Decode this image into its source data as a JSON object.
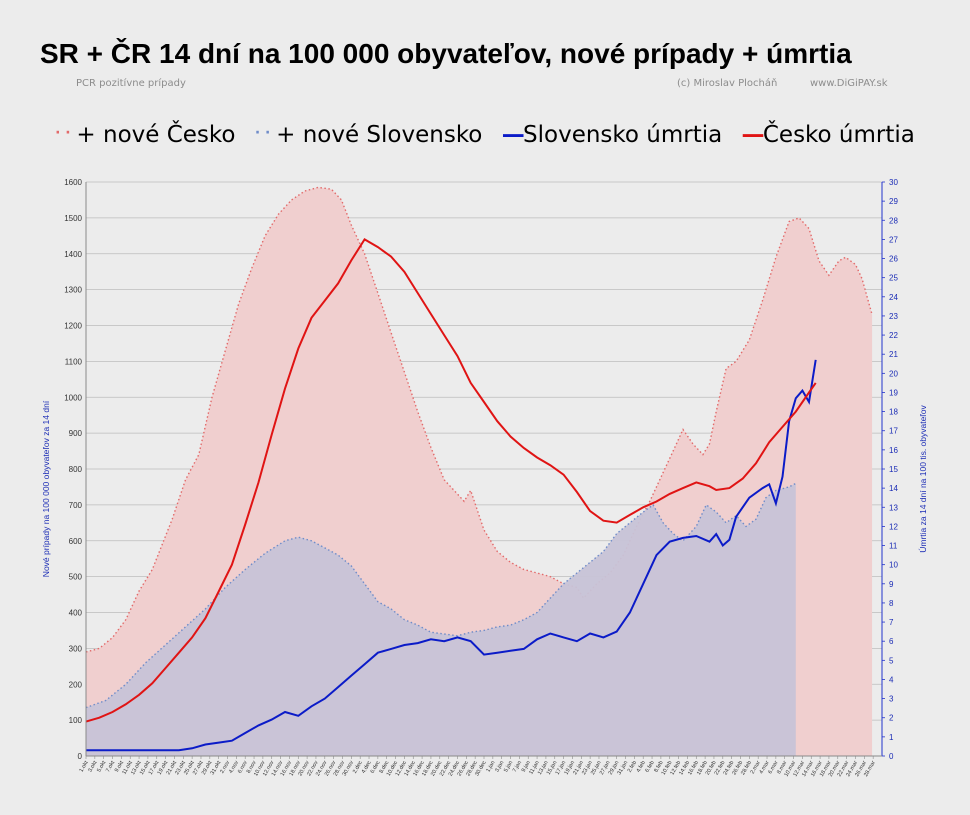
{
  "title": "SR + ČR 14 dní na 100 000 obyvateľov,  nové prípady + úmrtia",
  "subtitle_left": "PCR pozitívne prípady",
  "credit": "(c) Miroslav Plocháň",
  "website": "www.DiGiPAY.sk",
  "colors": {
    "cz_cases_fill": "#f0cfcf",
    "cz_cases_line": "#e26a6a",
    "sk_cases_fill": "#c7c3d7",
    "sk_cases_line": "#6f8cc9",
    "sk_deaths": "#0b1bc8",
    "cz_deaths": "#e01414"
  },
  "chart_data": {
    "type": "line",
    "legend_position": "top",
    "grid": true,
    "ylabel_left": "Nové prípady na 100 000 obyvateľov za 14 dní",
    "ylabel_right": "Úmrtia za 14 dní na 100 tis. obyvateľov",
    "ylim_left": [
      0,
      1600
    ],
    "ylim_right": [
      0,
      30
    ],
    "yticks_left": [
      0,
      100,
      200,
      300,
      400,
      500,
      600,
      700,
      800,
      900,
      1000,
      1100,
      1200,
      1300,
      1400,
      1500,
      1600
    ],
    "yticks_right": [
      0,
      1,
      2,
      3,
      4,
      5,
      6,
      7,
      8,
      9,
      10,
      11,
      12,
      13,
      14,
      15,
      16,
      17,
      18,
      19,
      20,
      21,
      22,
      23,
      24,
      25,
      26,
      27,
      28,
      29,
      30
    ],
    "x_days": 240,
    "x_ticks": [
      "1.okt",
      "3.okt",
      "5.okt",
      "7.okt",
      "9.okt",
      "11.okt",
      "13.okt",
      "15.okt",
      "17.okt",
      "19.okt",
      "21.okt",
      "23.okt",
      "25.okt",
      "27.okt",
      "29.okt",
      "31.okt",
      "2.nov",
      "4.nov",
      "6.nov",
      "8.nov",
      "10.nov",
      "12.nov",
      "14.nov",
      "16.nov",
      "18.nov",
      "20.nov",
      "22.nov",
      "24.nov",
      "26.nov",
      "28.nov",
      "30.nov",
      "2.dec",
      "4.dec",
      "6.dec",
      "8.dec",
      "10.dec",
      "12.dec",
      "14.dec",
      "16.dec",
      "18.dec",
      "20.dec",
      "22.dec",
      "24.dec",
      "26.dec",
      "28.dec",
      "30.dec",
      "1.jan",
      "3.jan",
      "5.jan",
      "7.jan",
      "9.jan",
      "11.jan",
      "13.jan",
      "15.jan",
      "17.jan",
      "19.jan",
      "21.jan",
      "23.jan",
      "25.jan",
      "27.jan",
      "29.jan",
      "31.jan",
      "2.feb",
      "4.feb",
      "6.feb",
      "8.feb",
      "10.feb",
      "12.feb",
      "14.feb",
      "16.feb",
      "18.feb",
      "20.feb",
      "22.feb",
      "24.feb",
      "26.feb",
      "28.feb",
      "2.mar",
      "4.mar",
      "6.mar",
      "8.mar",
      "10.mar",
      "12.mar",
      "14.mar",
      "16.mar",
      "18.mar",
      "20.mar",
      "22.mar",
      "24.mar",
      "26.mar",
      "28.mar"
    ],
    "series": [
      {
        "name": "+ nové Česko",
        "axis": "left",
        "style": "dotted-area",
        "points": [
          [
            0,
            290
          ],
          [
            4,
            300
          ],
          [
            8,
            330
          ],
          [
            12,
            380
          ],
          [
            16,
            460
          ],
          [
            20,
            520
          ],
          [
            26,
            660
          ],
          [
            30,
            770
          ],
          [
            34,
            840
          ],
          [
            38,
            1000
          ],
          [
            42,
            1130
          ],
          [
            46,
            1260
          ],
          [
            50,
            1360
          ],
          [
            54,
            1450
          ],
          [
            58,
            1510
          ],
          [
            62,
            1550
          ],
          [
            66,
            1575
          ],
          [
            70,
            1585
          ],
          [
            74,
            1580
          ],
          [
            77,
            1550
          ],
          [
            80,
            1480
          ],
          [
            84,
            1400
          ],
          [
            88,
            1290
          ],
          [
            92,
            1180
          ],
          [
            96,
            1070
          ],
          [
            100,
            960
          ],
          [
            104,
            860
          ],
          [
            108,
            770
          ],
          [
            112,
            730
          ],
          [
            114,
            710
          ],
          [
            116,
            740
          ],
          [
            120,
            630
          ],
          [
            124,
            570
          ],
          [
            128,
            540
          ],
          [
            132,
            520
          ],
          [
            136,
            510
          ],
          [
            140,
            500
          ],
          [
            144,
            480
          ],
          [
            148,
            470
          ],
          [
            150,
            440
          ],
          [
            154,
            480
          ],
          [
            158,
            510
          ],
          [
            162,
            560
          ],
          [
            166,
            640
          ],
          [
            170,
            710
          ],
          [
            174,
            790
          ],
          [
            177,
            850
          ],
          [
            180,
            910
          ],
          [
            183,
            870
          ],
          [
            186,
            840
          ],
          [
            188,
            870
          ],
          [
            190,
            960
          ],
          [
            193,
            1080
          ],
          [
            196,
            1100
          ],
          [
            200,
            1160
          ],
          [
            204,
            1270
          ],
          [
            208,
            1390
          ],
          [
            212,
            1490
          ],
          [
            215,
            1500
          ],
          [
            218,
            1470
          ],
          [
            221,
            1380
          ],
          [
            224,
            1340
          ],
          [
            227,
            1380
          ],
          [
            229,
            1390
          ],
          [
            232,
            1370
          ],
          [
            234,
            1330
          ],
          [
            237,
            1230
          ]
        ]
      },
      {
        "name": "+ nové Slovensko",
        "axis": "left",
        "style": "dotted-area",
        "points": [
          [
            0,
            135
          ],
          [
            6,
            155
          ],
          [
            12,
            200
          ],
          [
            18,
            260
          ],
          [
            24,
            310
          ],
          [
            30,
            360
          ],
          [
            36,
            410
          ],
          [
            42,
            470
          ],
          [
            48,
            520
          ],
          [
            54,
            565
          ],
          [
            60,
            600
          ],
          [
            64,
            610
          ],
          [
            68,
            600
          ],
          [
            72,
            580
          ],
          [
            76,
            560
          ],
          [
            80,
            530
          ],
          [
            84,
            480
          ],
          [
            88,
            430
          ],
          [
            92,
            410
          ],
          [
            96,
            380
          ],
          [
            100,
            365
          ],
          [
            104,
            345
          ],
          [
            108,
            340
          ],
          [
            112,
            335
          ],
          [
            116,
            345
          ],
          [
            120,
            350
          ],
          [
            124,
            360
          ],
          [
            128,
            365
          ],
          [
            132,
            380
          ],
          [
            136,
            400
          ],
          [
            140,
            440
          ],
          [
            144,
            480
          ],
          [
            148,
            510
          ],
          [
            152,
            540
          ],
          [
            156,
            570
          ],
          [
            160,
            620
          ],
          [
            164,
            650
          ],
          [
            168,
            680
          ],
          [
            171,
            700
          ],
          [
            174,
            650
          ],
          [
            177,
            620
          ],
          [
            180,
            600
          ],
          [
            184,
            640
          ],
          [
            187,
            700
          ],
          [
            190,
            680
          ],
          [
            193,
            650
          ],
          [
            196,
            670
          ],
          [
            199,
            640
          ],
          [
            202,
            660
          ],
          [
            205,
            720
          ],
          [
            208,
            740
          ],
          [
            212,
            750
          ],
          [
            214,
            760
          ]
        ]
      },
      {
        "name": "Slovensko úmrtia",
        "axis": "right",
        "style": "line",
        "points": [
          [
            0,
            0.3
          ],
          [
            10,
            0.3
          ],
          [
            20,
            0.3
          ],
          [
            28,
            0.3
          ],
          [
            32,
            0.4
          ],
          [
            36,
            0.6
          ],
          [
            40,
            0.7
          ],
          [
            44,
            0.8
          ],
          [
            48,
            1.2
          ],
          [
            52,
            1.6
          ],
          [
            56,
            1.9
          ],
          [
            60,
            2.3
          ],
          [
            64,
            2.1
          ],
          [
            68,
            2.6
          ],
          [
            72,
            3.0
          ],
          [
            76,
            3.6
          ],
          [
            80,
            4.2
          ],
          [
            84,
            4.8
          ],
          [
            88,
            5.4
          ],
          [
            92,
            5.6
          ],
          [
            96,
            5.8
          ],
          [
            100,
            5.9
          ],
          [
            104,
            6.1
          ],
          [
            108,
            6.0
          ],
          [
            112,
            6.2
          ],
          [
            116,
            6.0
          ],
          [
            120,
            5.3
          ],
          [
            124,
            5.4
          ],
          [
            128,
            5.5
          ],
          [
            132,
            5.6
          ],
          [
            136,
            6.1
          ],
          [
            140,
            6.4
          ],
          [
            144,
            6.2
          ],
          [
            148,
            6.0
          ],
          [
            152,
            6.4
          ],
          [
            156,
            6.2
          ],
          [
            160,
            6.5
          ],
          [
            164,
            7.5
          ],
          [
            168,
            9.0
          ],
          [
            172,
            10.5
          ],
          [
            176,
            11.2
          ],
          [
            180,
            11.4
          ],
          [
            184,
            11.5
          ],
          [
            188,
            11.2
          ],
          [
            190,
            11.6
          ],
          [
            192,
            11.0
          ],
          [
            194,
            11.3
          ],
          [
            196,
            12.5
          ],
          [
            200,
            13.5
          ],
          [
            204,
            14.0
          ],
          [
            206,
            14.2
          ],
          [
            208,
            13.2
          ],
          [
            210,
            14.6
          ],
          [
            212,
            17.5
          ],
          [
            214,
            18.7
          ],
          [
            216,
            19.1
          ],
          [
            218,
            18.5
          ],
          [
            220,
            20.7
          ]
        ]
      },
      {
        "name": "Česko úmrtia",
        "axis": "right",
        "style": "line",
        "points": [
          [
            0,
            1.8
          ],
          [
            4,
            2.0
          ],
          [
            8,
            2.3
          ],
          [
            12,
            2.7
          ],
          [
            16,
            3.2
          ],
          [
            20,
            3.8
          ],
          [
            24,
            4.6
          ],
          [
            28,
            5.4
          ],
          [
            32,
            6.2
          ],
          [
            36,
            7.2
          ],
          [
            40,
            8.6
          ],
          [
            44,
            10.0
          ],
          [
            48,
            12.1
          ],
          [
            52,
            14.3
          ],
          [
            56,
            16.8
          ],
          [
            60,
            19.2
          ],
          [
            64,
            21.3
          ],
          [
            68,
            22.9
          ],
          [
            72,
            23.8
          ],
          [
            76,
            24.7
          ],
          [
            80,
            25.9
          ],
          [
            84,
            27.0
          ],
          [
            88,
            26.6
          ],
          [
            92,
            26.1
          ],
          [
            96,
            25.3
          ],
          [
            100,
            24.2
          ],
          [
            104,
            23.1
          ],
          [
            108,
            22.0
          ],
          [
            112,
            20.9
          ],
          [
            116,
            19.5
          ],
          [
            120,
            18.5
          ],
          [
            124,
            17.5
          ],
          [
            128,
            16.7
          ],
          [
            132,
            16.1
          ],
          [
            136,
            15.6
          ],
          [
            140,
            15.2
          ],
          [
            144,
            14.7
          ],
          [
            148,
            13.8
          ],
          [
            152,
            12.8
          ],
          [
            156,
            12.3
          ],
          [
            160,
            12.2
          ],
          [
            164,
            12.6
          ],
          [
            168,
            13.0
          ],
          [
            172,
            13.3
          ],
          [
            176,
            13.7
          ],
          [
            180,
            14.0
          ],
          [
            184,
            14.3
          ],
          [
            188,
            14.1
          ],
          [
            190,
            13.9
          ],
          [
            194,
            14.0
          ],
          [
            198,
            14.5
          ],
          [
            202,
            15.3
          ],
          [
            206,
            16.4
          ],
          [
            210,
            17.2
          ],
          [
            214,
            18.0
          ],
          [
            218,
            19.0
          ],
          [
            220,
            19.5
          ]
        ]
      }
    ]
  }
}
